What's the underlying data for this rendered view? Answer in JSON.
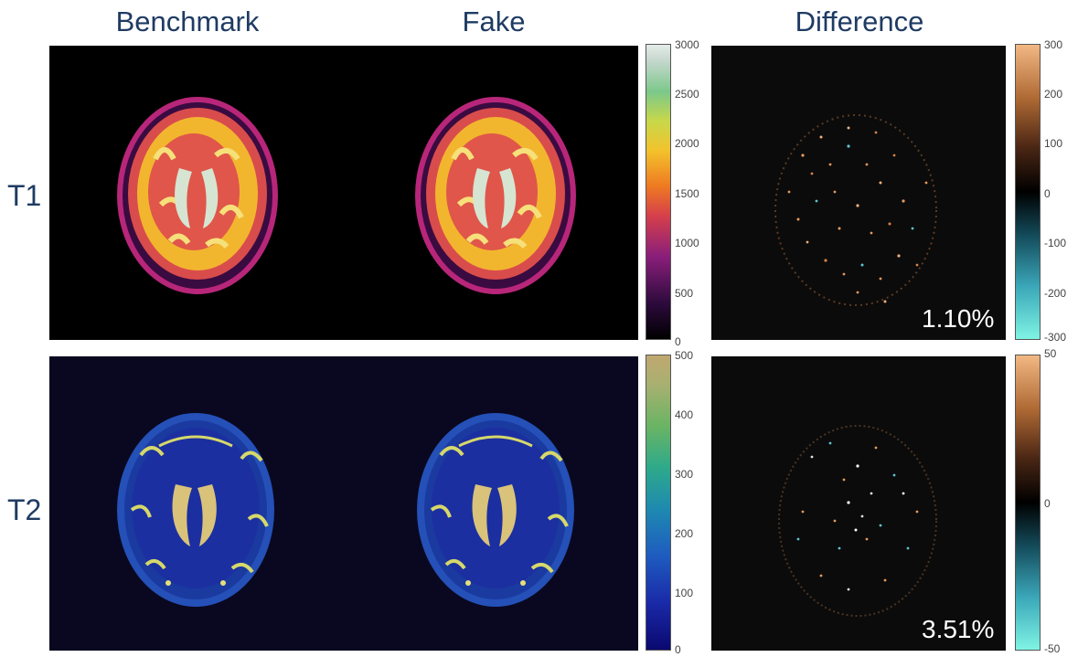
{
  "columns": {
    "benchmark": "Benchmark",
    "fake": "Fake",
    "difference": "Difference"
  },
  "rows": {
    "t1": "T1",
    "t2": "T2"
  },
  "colorbars": {
    "t1_map": {
      "ticks": [
        "3000",
        "2500",
        "2000",
        "1500",
        "1000",
        "500",
        "0"
      ]
    },
    "t1_diff": {
      "ticks": [
        "300",
        "200",
        "100",
        "0",
        "-100",
        "-200",
        "-300"
      ]
    },
    "t2_map": {
      "ticks": [
        "500",
        "400",
        "300",
        "200",
        "100",
        "0"
      ]
    },
    "t2_diff": {
      "ticks": [
        "50",
        "0",
        "-50"
      ]
    }
  },
  "errors": {
    "t1": "1.10%",
    "t2": "3.51%"
  },
  "colors": {
    "title": "#1f3b63",
    "t2_background": "#0a0820",
    "diff_background": "#0b0b0b"
  }
}
